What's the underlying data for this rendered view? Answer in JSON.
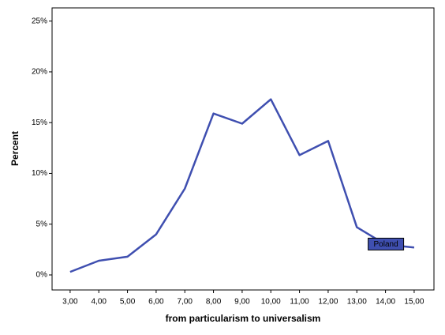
{
  "chart_data": {
    "type": "line",
    "x_label": "from particularism to universalism",
    "y_label": "Percent",
    "x": [
      3,
      4,
      5,
      6,
      7,
      8,
      9,
      10,
      11,
      12,
      13,
      14,
      15
    ],
    "series": [
      {
        "name": "Poland",
        "color": "#3f4fb0",
        "values": [
          0.3,
          1.4,
          1.8,
          4.0,
          8.5,
          15.9,
          14.9,
          17.3,
          11.8,
          13.2,
          4.7,
          3.0,
          2.7
        ]
      }
    ],
    "xlim": [
      2.37,
      15.69
    ],
    "ylim": [
      -1.48,
      26.3
    ],
    "xticks": [
      {
        "value": 3,
        "label": "3,00"
      },
      {
        "value": 4,
        "label": "4,00"
      },
      {
        "value": 5,
        "label": "5,00"
      },
      {
        "value": 6,
        "label": "6,00"
      },
      {
        "value": 7,
        "label": "7,00"
      },
      {
        "value": 8,
        "label": "8,00"
      },
      {
        "value": 9,
        "label": "9,00"
      },
      {
        "value": 10,
        "label": "10,00"
      },
      {
        "value": 11,
        "label": "11,00"
      },
      {
        "value": 12,
        "label": "12,00"
      },
      {
        "value": 13,
        "label": "13,00"
      },
      {
        "value": 14,
        "label": "14,00"
      },
      {
        "value": 15,
        "label": "15,00"
      }
    ],
    "yticks": [
      {
        "value": 0,
        "label": "0%"
      },
      {
        "value": 5,
        "label": "5%"
      },
      {
        "value": 10,
        "label": "10%"
      },
      {
        "value": 15,
        "label": "15%"
      },
      {
        "value": 20,
        "label": "20%"
      },
      {
        "value": 25,
        "label": "25%"
      }
    ],
    "grid": false
  }
}
